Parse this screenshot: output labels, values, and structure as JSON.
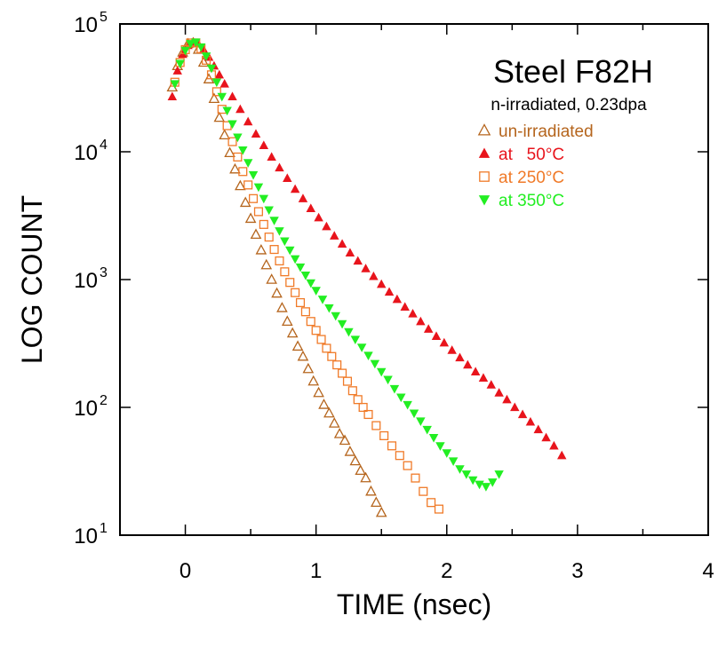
{
  "chart_data": {
    "type": "scatter",
    "title": "Steel F82H",
    "subtitle": "n-irradiated, 0.23dpa",
    "xlabel": "TIME (nsec)",
    "ylabel": "LOG COUNT",
    "xlim": [
      -0.5,
      4
    ],
    "ylim": [
      10,
      100000
    ],
    "yscale": "log",
    "x_ticks": [
      0,
      1,
      2,
      3,
      4
    ],
    "x_tick_labels": [
      "0",
      "1",
      "2",
      "3",
      "4"
    ],
    "y_ticks": [
      10,
      100,
      1000,
      10000,
      100000
    ],
    "y_tick_labels": [
      {
        "base": "10",
        "exp": "1"
      },
      {
        "base": "10",
        "exp": "2"
      },
      {
        "base": "10",
        "exp": "3"
      },
      {
        "base": "10",
        "exp": "4"
      },
      {
        "base": "10",
        "exp": "5"
      }
    ],
    "grid": false,
    "legend_position": "top-right",
    "series": [
      {
        "name": "un-irradiated",
        "marker": "triangle-up-open",
        "color": "#b5651d",
        "x": [
          -0.1,
          -0.06,
          -0.02,
          0.02,
          0.06,
          0.1,
          0.14,
          0.18,
          0.22,
          0.26,
          0.3,
          0.34,
          0.38,
          0.42,
          0.46,
          0.5,
          0.54,
          0.58,
          0.62,
          0.66,
          0.7,
          0.74,
          0.78,
          0.82,
          0.86,
          0.9,
          0.94,
          0.98,
          1.02,
          1.06,
          1.1,
          1.14,
          1.18,
          1.22,
          1.26,
          1.3,
          1.34,
          1.38,
          1.42,
          1.46,
          1.5
        ],
        "y": [
          32000,
          47000,
          60000,
          70000,
          71000,
          63000,
          50000,
          37000,
          26000,
          18500,
          13500,
          9800,
          7300,
          5400,
          4000,
          3000,
          2250,
          1700,
          1300,
          1000,
          780,
          600,
          470,
          380,
          300,
          250,
          200,
          160,
          130,
          105,
          90,
          75,
          62,
          55,
          45,
          38,
          32,
          28,
          22,
          18,
          15
        ]
      },
      {
        "name": "at   50°C",
        "marker": "triangle-up-filled",
        "color": "#e8141c",
        "x": [
          -0.1,
          -0.06,
          -0.02,
          0.02,
          0.06,
          0.1,
          0.14,
          0.18,
          0.22,
          0.26,
          0.3,
          0.36,
          0.42,
          0.48,
          0.54,
          0.6,
          0.66,
          0.72,
          0.78,
          0.84,
          0.9,
          0.96,
          1.02,
          1.08,
          1.14,
          1.2,
          1.26,
          1.32,
          1.38,
          1.44,
          1.5,
          1.56,
          1.62,
          1.68,
          1.74,
          1.8,
          1.86,
          1.92,
          1.98,
          2.04,
          2.1,
          2.16,
          2.22,
          2.28,
          2.34,
          2.4,
          2.46,
          2.52,
          2.58,
          2.64,
          2.7,
          2.76,
          2.82,
          2.88
        ],
        "y": [
          27000,
          43000,
          58000,
          68000,
          72000,
          70000,
          63000,
          55000,
          47000,
          40000,
          34000,
          27000,
          21500,
          17200,
          13800,
          11200,
          9100,
          7500,
          6200,
          5100,
          4300,
          3600,
          3050,
          2600,
          2200,
          1900,
          1620,
          1400,
          1220,
          1060,
          920,
          800,
          700,
          610,
          540,
          470,
          410,
          360,
          320,
          280,
          245,
          215,
          190,
          170,
          150,
          130,
          115,
          100,
          88,
          77,
          67,
          58,
          50,
          42
        ]
      },
      {
        "name": "at 250°C",
        "marker": "square-open",
        "color": "#f07a28",
        "x": [
          -0.08,
          -0.04,
          0.0,
          0.04,
          0.08,
          0.12,
          0.16,
          0.2,
          0.24,
          0.28,
          0.32,
          0.36,
          0.4,
          0.44,
          0.48,
          0.52,
          0.56,
          0.6,
          0.64,
          0.68,
          0.72,
          0.76,
          0.8,
          0.84,
          0.88,
          0.92,
          0.96,
          1.0,
          1.04,
          1.08,
          1.12,
          1.16,
          1.2,
          1.24,
          1.28,
          1.32,
          1.36,
          1.4,
          1.46,
          1.52,
          1.58,
          1.64,
          1.7,
          1.76,
          1.82,
          1.88,
          1.94
        ],
        "y": [
          35000,
          50000,
          63000,
          71000,
          71000,
          64000,
          52000,
          40000,
          29500,
          21500,
          16000,
          12000,
          9100,
          7000,
          5500,
          4300,
          3400,
          2700,
          2150,
          1720,
          1400,
          1150,
          950,
          790,
          660,
          560,
          470,
          400,
          340,
          290,
          250,
          215,
          185,
          160,
          135,
          115,
          100,
          88,
          72,
          60,
          50,
          42,
          35,
          28,
          22,
          18,
          16
        ]
      },
      {
        "name": "at 350°C",
        "marker": "triangle-down-filled",
        "color": "#22ee22",
        "x": [
          -0.08,
          -0.04,
          0.0,
          0.04,
          0.08,
          0.12,
          0.16,
          0.2,
          0.24,
          0.28,
          0.32,
          0.36,
          0.4,
          0.44,
          0.48,
          0.52,
          0.56,
          0.6,
          0.64,
          0.68,
          0.72,
          0.76,
          0.8,
          0.84,
          0.88,
          0.92,
          0.96,
          1.0,
          1.05,
          1.1,
          1.15,
          1.2,
          1.25,
          1.3,
          1.35,
          1.4,
          1.45,
          1.5,
          1.55,
          1.6,
          1.65,
          1.7,
          1.75,
          1.8,
          1.85,
          1.9,
          1.95,
          2.0,
          2.05,
          2.1,
          2.15,
          2.2,
          2.25,
          2.3,
          2.35,
          2.4
        ],
        "y": [
          34000,
          49000,
          62000,
          70000,
          72000,
          66000,
          56000,
          45000,
          35000,
          27000,
          21000,
          16500,
          13000,
          10300,
          8200,
          6600,
          5300,
          4300,
          3500,
          2900,
          2400,
          2000,
          1700,
          1450,
          1250,
          1080,
          940,
          820,
          700,
          600,
          520,
          450,
          390,
          340,
          295,
          255,
          220,
          190,
          165,
          140,
          120,
          105,
          90,
          78,
          67,
          58,
          50,
          44,
          38,
          33,
          30,
          27,
          25,
          24,
          26,
          30
        ]
      }
    ]
  }
}
